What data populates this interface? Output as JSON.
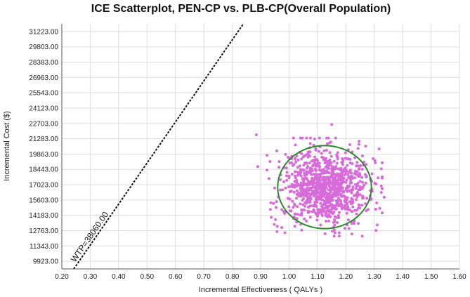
{
  "chart_data": {
    "type": "scatter",
    "title": "ICE Scatterplot, PEN-CP vs. PLB-CP(Overall Population)",
    "xlabel": "Incremental Effectiveness ( QALYs )",
    "ylabel": "Incremental Cost ($)",
    "xlim": [
      0.2,
      1.6
    ],
    "ylim": [
      9213,
      31933
    ],
    "x_ticks": [
      "0.20",
      "0.30",
      "0.40",
      "0.50",
      "0.60",
      "0.70",
      "0.80",
      "0.90",
      "1.00",
      "1.10",
      "1.20",
      "1.30",
      "1.40",
      "1.50",
      "1.60"
    ],
    "y_ticks": [
      "9923.00",
      "11343.00",
      "12763.00",
      "14183.00",
      "15603.00",
      "17023.00",
      "18443.00",
      "19863.00",
      "21283.00",
      "22703.00",
      "24123.00",
      "25543.00",
      "26963.00",
      "28383.00",
      "29803.00",
      "31223.00"
    ],
    "grid": true,
    "wtp_line": {
      "label": "WTP=38060.00",
      "slope": 38060
    },
    "ellipse": {
      "center": [
        1.125,
        16800
      ],
      "semi_axes": [
        0.165,
        3850
      ],
      "color": "#2a8a2a"
    },
    "point_color": "#d76bd9",
    "scatter": {
      "n_points": 1000,
      "center": [
        1.125,
        16800
      ],
      "spread": [
        0.078,
        1750
      ],
      "outliers": [
        [
          0.885,
          21650
        ],
        [
          1.15,
          22600
        ],
        [
          1.335,
          15850
        ],
        [
          1.325,
          16300
        ],
        [
          0.89,
          18700
        ],
        [
          1.27,
          20600
        ]
      ]
    }
  }
}
